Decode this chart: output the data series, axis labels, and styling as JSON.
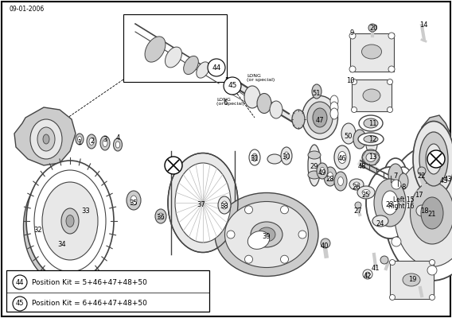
{
  "date_code": "09-01-2006",
  "bg_color": "#f5f5f5",
  "lc": "#444444",
  "fc_light": "#e8e8e8",
  "fc_mid": "#cccccc",
  "fc_dark": "#aaaaaa",
  "figsize": [
    5.68,
    4.0
  ],
  "dpi": 100,
  "legend": [
    {
      "num": "44",
      "text": "Position Kit = 5+46+47+48+50"
    },
    {
      "num": "45",
      "text": "Position Kit = 6+46+47+48+50"
    }
  ]
}
